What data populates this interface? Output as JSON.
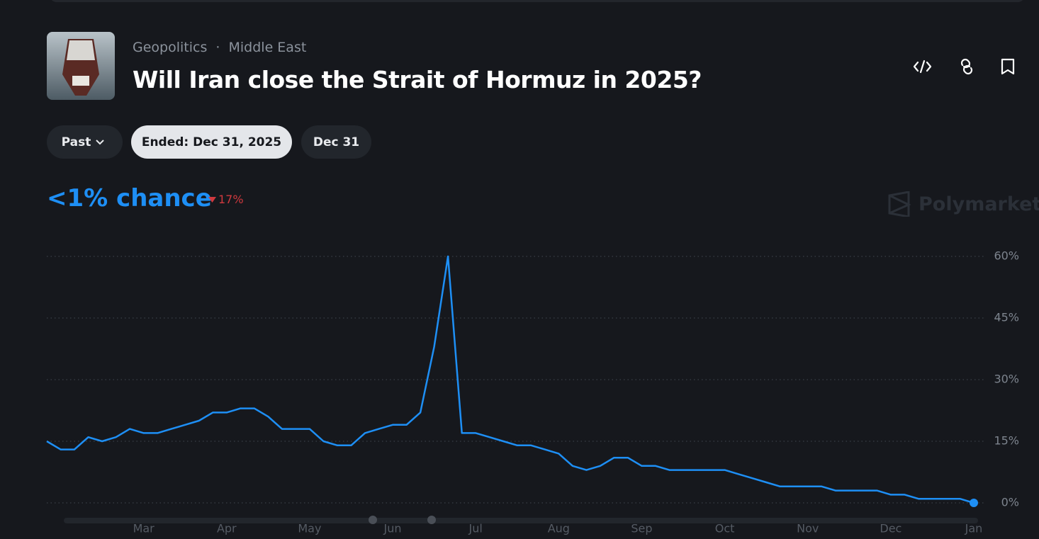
{
  "header": {
    "breadcrumb": [
      "Geopolitics",
      "Middle East"
    ],
    "separator": "·",
    "title": "Will Iran close the Strait of Hormuz in 2025?"
  },
  "filters": [
    "Past",
    "Ended: Dec 31, 2025",
    "Dec 31"
  ],
  "chance": {
    "label": "<1% chance",
    "change": "17%"
  },
  "brand": "Polymarket",
  "chart_data": {
    "type": "line",
    "color": "#1e8ff5",
    "grid": true,
    "categories": [
      null,
      null,
      null,
      null,
      null,
      null,
      null,
      "Mar",
      null,
      null,
      null,
      null,
      null,
      "Apr",
      null,
      null,
      null,
      null,
      null,
      "May",
      null,
      null,
      null,
      null,
      null,
      "Jun",
      null,
      null,
      null,
      null,
      null,
      "Jul",
      null,
      null,
      null,
      null,
      null,
      "Aug",
      null,
      null,
      null,
      null,
      null,
      "Sep",
      null,
      null,
      null,
      null,
      null,
      "Oct",
      null,
      null,
      null,
      null,
      null,
      "Nov",
      null,
      null,
      null,
      null,
      null,
      "Dec",
      null,
      null,
      null,
      null,
      null,
      "Jan"
    ],
    "values": [
      15,
      13,
      13,
      16,
      15,
      16,
      18,
      17,
      17,
      18,
      19,
      20,
      22,
      22,
      23,
      23,
      21,
      18,
      18,
      18,
      15,
      14,
      14,
      17,
      18,
      19,
      19,
      22,
      38,
      60,
      17,
      17,
      16,
      15,
      14,
      14,
      13,
      12,
      9,
      8,
      9,
      11,
      11,
      9,
      9,
      8,
      8,
      8,
      8,
      8,
      7,
      6,
      5,
      4,
      4,
      4,
      4,
      3,
      3,
      3,
      3,
      2,
      2,
      1,
      1,
      1,
      1,
      0
    ],
    "ylim": [
      0,
      60
    ],
    "yticks": [
      {
        "value": 0,
        "label": "0%"
      },
      {
        "value": 15,
        "label": "15%"
      },
      {
        "value": 30,
        "label": "30%"
      },
      {
        "value": 45,
        "label": "45%"
      },
      {
        "value": 60,
        "label": "60%"
      }
    ]
  }
}
